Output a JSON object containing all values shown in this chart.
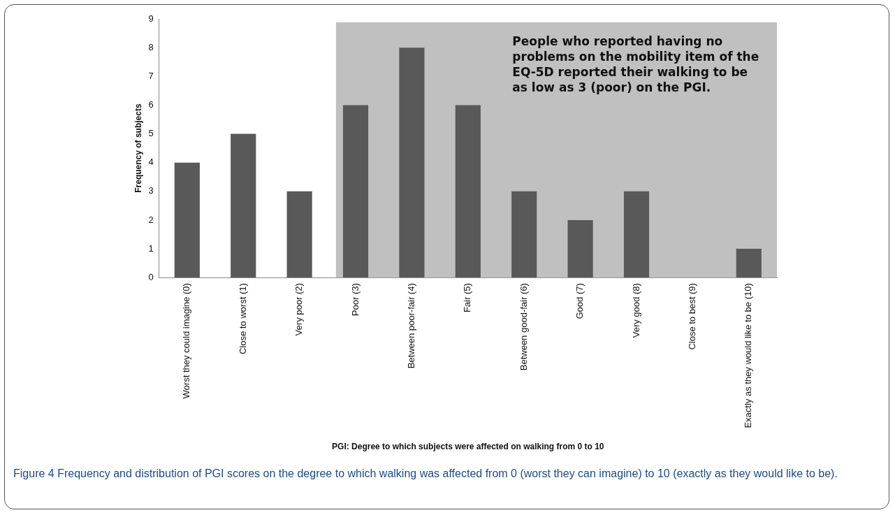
{
  "chart_data": {
    "type": "bar",
    "xlabel": "PGI: Degree to which subjects were affected on walking from 0 to 10",
    "ylabel": "Frequency of subjects",
    "categories": [
      "Worst they could imagine (0)",
      "Close to worst (1)",
      "Very poor (2)",
      "Poor (3)",
      "Between poor-fair (4)",
      "Fair (5)",
      "Between good-fair (6)",
      "Good (7)",
      "Very good (8)",
      "Close to best (9)",
      "Exactly as they would like to be (10)"
    ],
    "values": [
      4,
      5,
      3,
      6,
      8,
      6,
      3,
      2,
      3,
      0,
      1
    ],
    "color": "#595959",
    "ylim": [
      0,
      9
    ],
    "yticks": [
      0,
      1,
      2,
      3,
      4,
      5,
      6,
      7,
      8,
      9
    ],
    "grid": false,
    "legend": false,
    "bands": [
      {
        "axis": "x",
        "from": "Poor (3)",
        "to": "Exactly as they would like to be (10)",
        "label": "People who reported having no problems on the mobility item of the EQ-5D reported their walking to be as low as 3 (poor) on the PGI.",
        "color": "#c0c0c0"
      }
    ],
    "annotations": [
      "Figure 4 Frequency and distribution of PGI scores on the degree to which walking was affected from 0 (worst they can imagine) to 10 (exactly as they would like to be)."
    ]
  }
}
